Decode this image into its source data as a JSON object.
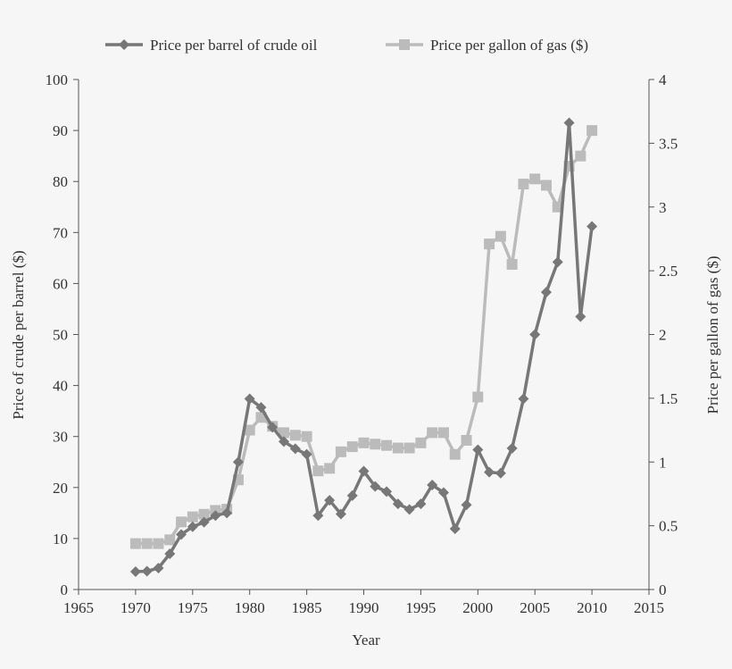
{
  "chart_data": {
    "type": "line",
    "xlabel": "Year",
    "ylabel_left": "Price of crude per barrel ($)",
    "ylabel_right": "Price per gallon of gas ($)",
    "xlim": [
      1965,
      2015
    ],
    "ylim_left": [
      0,
      100
    ],
    "ylim_right": [
      0,
      4
    ],
    "x_ticks": [
      1965,
      1970,
      1975,
      1980,
      1985,
      1990,
      1995,
      2000,
      2005,
      2010,
      2015
    ],
    "y_ticks_left": [
      0,
      10,
      20,
      30,
      40,
      50,
      60,
      70,
      80,
      90,
      100
    ],
    "y_ticks_right": [
      "0",
      "0.5",
      "1",
      "1.5",
      "2",
      "2.5",
      "3",
      "3.5",
      "4"
    ],
    "grid": false,
    "legend_position": "top",
    "x": [
      1970,
      1971,
      1972,
      1973,
      1974,
      1975,
      1976,
      1977,
      1978,
      1979,
      1980,
      1981,
      1982,
      1983,
      1984,
      1985,
      1986,
      1987,
      1988,
      1989,
      1990,
      1991,
      1992,
      1993,
      1994,
      1995,
      1996,
      1997,
      1998,
      1999,
      2000,
      2001,
      2002,
      2003,
      2004,
      2005,
      2006,
      2007,
      2008,
      2009,
      2010
    ],
    "series": [
      {
        "name": "Price per barrel of crude oil",
        "axis": "left",
        "color": "#777777",
        "marker": "diamond",
        "values": [
          3.5,
          3.6,
          4.2,
          7,
          10.8,
          12.3,
          13.2,
          14.5,
          15,
          25,
          37.4,
          35.7,
          31.8,
          29,
          27.6,
          26.5,
          14.5,
          17.5,
          14.8,
          18.4,
          23.2,
          20.2,
          19.2,
          16.8,
          15.7,
          16.8,
          20.5,
          19,
          11.9,
          16.6,
          27.4,
          23,
          22.8,
          27.7,
          37.4,
          50,
          58.3,
          64.2,
          91.5,
          53.5,
          71.2
        ]
      },
      {
        "name": "Price per gallon of gas ($)",
        "axis": "right",
        "color": "#bbbbbb",
        "marker": "square",
        "values": [
          0.36,
          0.36,
          0.36,
          0.39,
          0.53,
          0.57,
          0.59,
          0.62,
          0.63,
          0.86,
          1.25,
          1.35,
          1.28,
          1.23,
          1.21,
          1.2,
          0.93,
          0.95,
          1.08,
          1.12,
          1.15,
          1.14,
          1.13,
          1.11,
          1.11,
          1.15,
          1.23,
          1.23,
          1.06,
          1.17,
          1.51,
          2.71,
          2.77,
          2.55,
          3.18,
          3.22,
          3.17,
          3.0,
          3.32,
          3.4,
          3.6
        ]
      }
    ]
  }
}
